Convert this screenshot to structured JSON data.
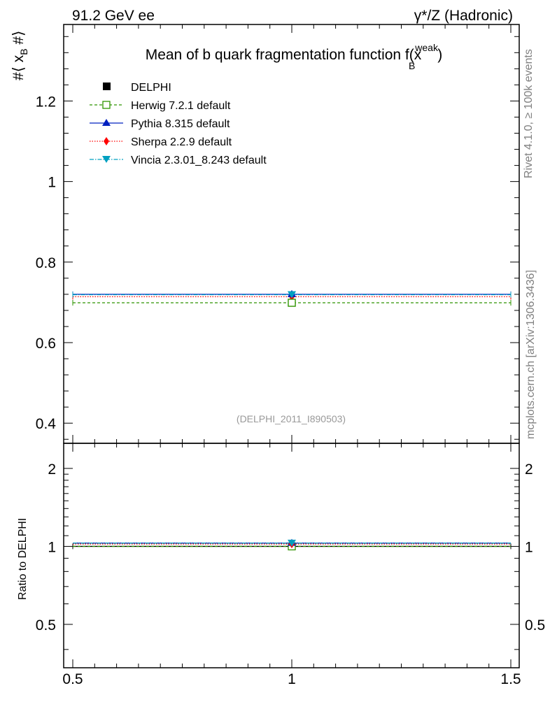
{
  "header": {
    "left": "91.2 GeV ee",
    "right": "γ*/Z (Hadronic)"
  },
  "side_labels": {
    "rivet": "Rivet 4.1.0, ≥ 100k events",
    "mcplots": "mcplots.cern.ch [arXiv:1306.3436]"
  },
  "colors": {
    "delphi": "#000000",
    "herwig": "#2f9400",
    "pythia": "#0020c0",
    "sherpa": "#ff0000",
    "vincia": "#00a0c0",
    "annotation": "#999999"
  },
  "chart_data": [
    {
      "type": "line",
      "panel": "main",
      "title": "Mean of b quark fragmentation function f(x_B^weak)",
      "title_main": "Mean of b quark fragmentation function f(",
      "title_x": "x",
      "title_sup": "weak",
      "title_sub": "B",
      "title_close": ")",
      "ylabel": "#⟨ x_B #⟩",
      "ylabel_parts": {
        "pre": "#⟨ x",
        "sub": "B",
        "post": " #⟩"
      },
      "xlim": [
        0.5,
        1.5
      ],
      "ylim": [
        0.35,
        1.39
      ],
      "yticks": [
        0.4,
        0.6,
        0.8,
        1,
        1.2
      ],
      "ytick_labels": [
        "0.4",
        "0.6",
        "0.8",
        "1",
        "1.2"
      ],
      "annotation": "(DELPHI_2011_I890503)",
      "legend_position": "top-left",
      "series": [
        {
          "name": "DELPHI",
          "marker": "square-filled",
          "x": [
            1.0
          ],
          "y": [
            0.699
          ],
          "x_err": [
            0.5
          ]
        },
        {
          "name": "Herwig 7.2.1 default",
          "marker": "square-open",
          "style": "dashed",
          "x": [
            1.0
          ],
          "y": [
            0.699
          ]
        },
        {
          "name": "Pythia 8.315 default",
          "marker": "triangle-up",
          "style": "solid",
          "x": [
            1.0
          ],
          "y": [
            0.72
          ]
        },
        {
          "name": "Sherpa 2.2.9 default",
          "marker": "diamond",
          "style": "dotted",
          "x": [
            1.0
          ],
          "y": [
            0.714
          ]
        },
        {
          "name": "Vincia 2.3.01_8.243 default",
          "marker": "triangle-down",
          "style": "dashdot",
          "x": [
            1.0
          ],
          "y": [
            0.719
          ]
        }
      ]
    },
    {
      "type": "line",
      "panel": "ratio",
      "ylabel": "Ratio to DELPHI",
      "xlim": [
        0.5,
        1.5
      ],
      "ylim": [
        0.34,
        2.5
      ],
      "xticks": [
        0.5,
        1,
        1.5
      ],
      "xtick_labels": [
        "0.5",
        "1",
        "1.5"
      ],
      "yticks": [
        0.5,
        1,
        2
      ],
      "ytick_labels": [
        "0.5",
        "1",
        "2"
      ],
      "series": [
        {
          "name": "Herwig 7.2.1 default",
          "x": [
            1.0
          ],
          "y": [
            1.0
          ]
        },
        {
          "name": "Pythia 8.315 default",
          "x": [
            1.0
          ],
          "y": [
            1.03
          ]
        },
        {
          "name": "Sherpa 2.2.9 default",
          "x": [
            1.0
          ],
          "y": [
            1.021
          ]
        },
        {
          "name": "Vincia 2.3.01_8.243 default",
          "x": [
            1.0
          ],
          "y": [
            1.029
          ]
        }
      ]
    }
  ]
}
